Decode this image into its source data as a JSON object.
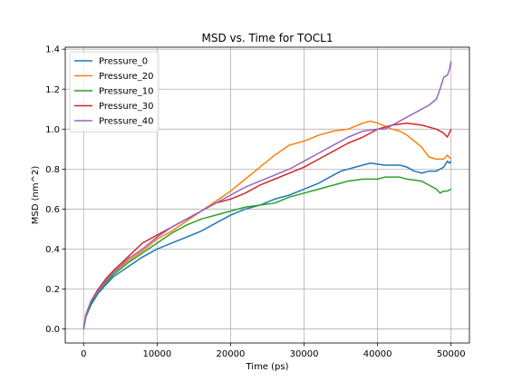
{
  "chart_data": {
    "type": "line",
    "title": "MSD vs. Time for TOCL1",
    "xlabel": "Time (ps)",
    "ylabel": "MSD (nm^2)",
    "xlim": [
      -2500,
      52500
    ],
    "ylim": [
      -0.07,
      1.41
    ],
    "xticks": [
      0,
      10000,
      20000,
      30000,
      40000,
      50000
    ],
    "xtick_labels": [
      "0",
      "10000",
      "20000",
      "30000",
      "40000",
      "50000"
    ],
    "yticks": [
      0.0,
      0.2,
      0.4,
      0.6,
      0.8,
      1.0,
      1.2,
      1.4
    ],
    "ytick_labels": [
      "0.0",
      "0.2",
      "0.4",
      "0.6",
      "0.8",
      "1.0",
      "1.2",
      "1.4"
    ],
    "grid": true,
    "legend_position": "upper-left",
    "series": [
      {
        "name": "Pressure_0",
        "color": "#1f77b4",
        "points": [
          [
            0,
            0.0
          ],
          [
            300,
            0.06
          ],
          [
            1000,
            0.12
          ],
          [
            2000,
            0.18
          ],
          [
            3000,
            0.22
          ],
          [
            4000,
            0.26
          ],
          [
            6000,
            0.31
          ],
          [
            8000,
            0.36
          ],
          [
            10000,
            0.4
          ],
          [
            12000,
            0.43
          ],
          [
            14000,
            0.46
          ],
          [
            16000,
            0.49
          ],
          [
            18000,
            0.53
          ],
          [
            20000,
            0.57
          ],
          [
            22000,
            0.6
          ],
          [
            24000,
            0.62
          ],
          [
            26000,
            0.65
          ],
          [
            28000,
            0.67
          ],
          [
            30000,
            0.7
          ],
          [
            32000,
            0.73
          ],
          [
            34000,
            0.77
          ],
          [
            35000,
            0.79
          ],
          [
            37000,
            0.81
          ],
          [
            39000,
            0.83
          ],
          [
            41000,
            0.82
          ],
          [
            43000,
            0.82
          ],
          [
            44000,
            0.81
          ],
          [
            45000,
            0.79
          ],
          [
            46000,
            0.78
          ],
          [
            47000,
            0.79
          ],
          [
            48000,
            0.79
          ],
          [
            48500,
            0.8
          ],
          [
            49000,
            0.81
          ],
          [
            49500,
            0.84
          ],
          [
            49800,
            0.83
          ],
          [
            50000,
            0.84
          ]
        ]
      },
      {
        "name": "Pressure_20",
        "color": "#ff7f0e",
        "points": [
          [
            0,
            0.0
          ],
          [
            300,
            0.07
          ],
          [
            1000,
            0.13
          ],
          [
            2000,
            0.19
          ],
          [
            3000,
            0.24
          ],
          [
            4000,
            0.28
          ],
          [
            6000,
            0.34
          ],
          [
            8000,
            0.39
          ],
          [
            10000,
            0.45
          ],
          [
            12000,
            0.49
          ],
          [
            14000,
            0.54
          ],
          [
            16000,
            0.59
          ],
          [
            18000,
            0.64
          ],
          [
            20000,
            0.69
          ],
          [
            22000,
            0.75
          ],
          [
            24000,
            0.81
          ],
          [
            26000,
            0.87
          ],
          [
            28000,
            0.92
          ],
          [
            30000,
            0.94
          ],
          [
            32000,
            0.97
          ],
          [
            34000,
            0.99
          ],
          [
            36000,
            1.0
          ],
          [
            38000,
            1.03
          ],
          [
            39000,
            1.04
          ],
          [
            40000,
            1.03
          ],
          [
            42000,
            1.0
          ],
          [
            43000,
            0.99
          ],
          [
            44000,
            0.97
          ],
          [
            45000,
            0.94
          ],
          [
            46000,
            0.91
          ],
          [
            47000,
            0.86
          ],
          [
            48000,
            0.85
          ],
          [
            49000,
            0.85
          ],
          [
            49500,
            0.87
          ],
          [
            50000,
            0.85
          ]
        ]
      },
      {
        "name": "Pressure_10",
        "color": "#2ca02c",
        "points": [
          [
            0,
            0.0
          ],
          [
            300,
            0.06
          ],
          [
            1000,
            0.13
          ],
          [
            2000,
            0.19
          ],
          [
            3000,
            0.23
          ],
          [
            4000,
            0.27
          ],
          [
            6000,
            0.33
          ],
          [
            8000,
            0.38
          ],
          [
            10000,
            0.43
          ],
          [
            12000,
            0.48
          ],
          [
            14000,
            0.52
          ],
          [
            16000,
            0.55
          ],
          [
            18000,
            0.57
          ],
          [
            20000,
            0.59
          ],
          [
            22000,
            0.61
          ],
          [
            24000,
            0.62
          ],
          [
            26000,
            0.63
          ],
          [
            28000,
            0.66
          ],
          [
            30000,
            0.68
          ],
          [
            32000,
            0.7
          ],
          [
            34000,
            0.72
          ],
          [
            36000,
            0.74
          ],
          [
            38000,
            0.75
          ],
          [
            40000,
            0.75
          ],
          [
            41000,
            0.76
          ],
          [
            43000,
            0.76
          ],
          [
            44000,
            0.75
          ],
          [
            46000,
            0.74
          ],
          [
            47000,
            0.72
          ],
          [
            48000,
            0.7
          ],
          [
            48500,
            0.68
          ],
          [
            49000,
            0.69
          ],
          [
            49500,
            0.69
          ],
          [
            50000,
            0.7
          ]
        ]
      },
      {
        "name": "Pressure_30",
        "color": "#d62728",
        "points": [
          [
            0,
            0.0
          ],
          [
            300,
            0.07
          ],
          [
            1000,
            0.14
          ],
          [
            2000,
            0.2
          ],
          [
            3000,
            0.25
          ],
          [
            4000,
            0.29
          ],
          [
            6000,
            0.36
          ],
          [
            8000,
            0.43
          ],
          [
            10000,
            0.47
          ],
          [
            12000,
            0.51
          ],
          [
            14000,
            0.55
          ],
          [
            16000,
            0.59
          ],
          [
            18000,
            0.63
          ],
          [
            20000,
            0.65
          ],
          [
            22000,
            0.68
          ],
          [
            24000,
            0.72
          ],
          [
            26000,
            0.75
          ],
          [
            28000,
            0.78
          ],
          [
            30000,
            0.81
          ],
          [
            32000,
            0.85
          ],
          [
            34000,
            0.89
          ],
          [
            36000,
            0.93
          ],
          [
            38000,
            0.96
          ],
          [
            40000,
            1.0
          ],
          [
            42000,
            1.02
          ],
          [
            44000,
            1.03
          ],
          [
            46000,
            1.02
          ],
          [
            48000,
            1.0
          ],
          [
            49000,
            0.98
          ],
          [
            49500,
            0.96
          ],
          [
            50000,
            1.0
          ]
        ]
      },
      {
        "name": "Pressure_40",
        "color": "#9467bd",
        "points": [
          [
            0,
            0.0
          ],
          [
            300,
            0.07
          ],
          [
            1000,
            0.14
          ],
          [
            2000,
            0.19
          ],
          [
            3000,
            0.24
          ],
          [
            4000,
            0.28
          ],
          [
            6000,
            0.35
          ],
          [
            8000,
            0.4
          ],
          [
            10000,
            0.46
          ],
          [
            12000,
            0.51
          ],
          [
            14000,
            0.55
          ],
          [
            16000,
            0.59
          ],
          [
            18000,
            0.63
          ],
          [
            20000,
            0.67
          ],
          [
            22000,
            0.71
          ],
          [
            24000,
            0.74
          ],
          [
            26000,
            0.77
          ],
          [
            28000,
            0.8
          ],
          [
            30000,
            0.84
          ],
          [
            32000,
            0.88
          ],
          [
            34000,
            0.92
          ],
          [
            36000,
            0.96
          ],
          [
            38000,
            0.99
          ],
          [
            40000,
            1.0
          ],
          [
            41000,
            1.0
          ],
          [
            42000,
            1.02
          ],
          [
            44000,
            1.06
          ],
          [
            46000,
            1.1
          ],
          [
            47000,
            1.12
          ],
          [
            48000,
            1.15
          ],
          [
            48500,
            1.2
          ],
          [
            49000,
            1.26
          ],
          [
            49500,
            1.27
          ],
          [
            49800,
            1.3
          ],
          [
            50000,
            1.34
          ]
        ]
      }
    ]
  }
}
